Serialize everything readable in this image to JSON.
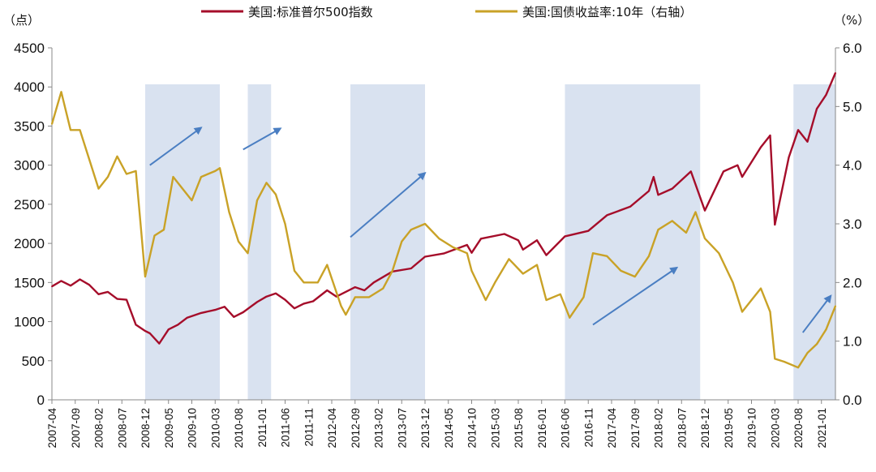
{
  "chart_data": {
    "type": "line",
    "title": "",
    "xlabel": "",
    "x_start": "2007-04",
    "x_end": "2021-04",
    "x_tick_labels": [
      "2007-04",
      "2007-09",
      "2008-02",
      "2008-07",
      "2008-12",
      "2009-05",
      "2009-10",
      "2010-03",
      "2010-08",
      "2011-01",
      "2011-06",
      "2011-11",
      "2012-04",
      "2012-09",
      "2013-02",
      "2013-07",
      "2013-12",
      "2014-05",
      "2014-10",
      "2015-03",
      "2015-08",
      "2016-01",
      "2016-06",
      "2016-11",
      "2017-04",
      "2017-09",
      "2018-02",
      "2018-07",
      "2018-12",
      "2019-05",
      "2019-10",
      "2020-03",
      "2020-08",
      "2021-01"
    ],
    "left_axis": {
      "unit": "（点）",
      "ylim": [
        0,
        4500
      ],
      "ticks": [
        "0",
        "500",
        "1000",
        "1500",
        "2000",
        "2500",
        "3000",
        "3500",
        "4000",
        "4500"
      ]
    },
    "right_axis": {
      "unit": "（%）",
      "ylim": [
        0,
        6
      ],
      "ticks": [
        "0.0",
        "1.0",
        "2.0",
        "3.0",
        "4.0",
        "5.0",
        "6.0"
      ]
    },
    "series": [
      {
        "name": "美国:标准普尔500指数",
        "axis": "left",
        "color": "#a50d2a",
        "points": [
          [
            "2007-04",
            1450
          ],
          [
            "2007-06",
            1520
          ],
          [
            "2007-08",
            1460
          ],
          [
            "2007-10",
            1540
          ],
          [
            "2007-12",
            1470
          ],
          [
            "2008-02",
            1350
          ],
          [
            "2008-04",
            1380
          ],
          [
            "2008-06",
            1290
          ],
          [
            "2008-08",
            1280
          ],
          [
            "2008-10",
            960
          ],
          [
            "2008-12",
            880
          ],
          [
            "2009-01",
            850
          ],
          [
            "2009-03",
            720
          ],
          [
            "2009-05",
            900
          ],
          [
            "2009-07",
            960
          ],
          [
            "2009-09",
            1050
          ],
          [
            "2009-12",
            1110
          ],
          [
            "2010-03",
            1150
          ],
          [
            "2010-05",
            1190
          ],
          [
            "2010-07",
            1060
          ],
          [
            "2010-09",
            1120
          ],
          [
            "2010-12",
            1250
          ],
          [
            "2011-02",
            1320
          ],
          [
            "2011-04",
            1360
          ],
          [
            "2011-06",
            1280
          ],
          [
            "2011-08",
            1170
          ],
          [
            "2011-10",
            1230
          ],
          [
            "2011-12",
            1260
          ],
          [
            "2012-03",
            1400
          ],
          [
            "2012-05",
            1320
          ],
          [
            "2012-09",
            1440
          ],
          [
            "2012-11",
            1400
          ],
          [
            "2013-01",
            1500
          ],
          [
            "2013-05",
            1640
          ],
          [
            "2013-09",
            1680
          ],
          [
            "2013-12",
            1830
          ],
          [
            "2014-04",
            1870
          ],
          [
            "2014-09",
            1980
          ],
          [
            "2014-10",
            1880
          ],
          [
            "2014-12",
            2060
          ],
          [
            "2015-05",
            2120
          ],
          [
            "2015-08",
            2040
          ],
          [
            "2015-09",
            1920
          ],
          [
            "2015-12",
            2040
          ],
          [
            "2016-02",
            1850
          ],
          [
            "2016-06",
            2090
          ],
          [
            "2016-11",
            2160
          ],
          [
            "2017-03",
            2360
          ],
          [
            "2017-08",
            2470
          ],
          [
            "2017-12",
            2670
          ],
          [
            "2018-01",
            2850
          ],
          [
            "2018-02",
            2620
          ],
          [
            "2018-05",
            2700
          ],
          [
            "2018-09",
            2920
          ],
          [
            "2018-12",
            2420
          ],
          [
            "2019-04",
            2920
          ],
          [
            "2019-07",
            3000
          ],
          [
            "2019-08",
            2850
          ],
          [
            "2019-12",
            3230
          ],
          [
            "2020-02",
            3380
          ],
          [
            "2020-03",
            2240
          ],
          [
            "2020-06",
            3100
          ],
          [
            "2020-08",
            3450
          ],
          [
            "2020-10",
            3300
          ],
          [
            "2020-12",
            3720
          ],
          [
            "2021-02",
            3900
          ],
          [
            "2021-04",
            4180
          ]
        ]
      },
      {
        "name": "美国:国债收益率:10年（右轴）",
        "axis": "right",
        "color": "#c9a227",
        "points": [
          [
            "2007-04",
            4.7
          ],
          [
            "2007-06",
            5.25
          ],
          [
            "2007-08",
            4.6
          ],
          [
            "2007-10",
            4.6
          ],
          [
            "2007-12",
            4.1
          ],
          [
            "2008-02",
            3.6
          ],
          [
            "2008-04",
            3.8
          ],
          [
            "2008-06",
            4.15
          ],
          [
            "2008-08",
            3.85
          ],
          [
            "2008-10",
            3.9
          ],
          [
            "2008-11",
            3.0
          ],
          [
            "2008-12",
            2.1
          ],
          [
            "2009-02",
            2.8
          ],
          [
            "2009-04",
            2.9
          ],
          [
            "2009-06",
            3.8
          ],
          [
            "2009-08",
            3.6
          ],
          [
            "2009-10",
            3.4
          ],
          [
            "2009-12",
            3.8
          ],
          [
            "2010-03",
            3.9
          ],
          [
            "2010-04",
            3.95
          ],
          [
            "2010-06",
            3.2
          ],
          [
            "2010-08",
            2.7
          ],
          [
            "2010-10",
            2.5
          ],
          [
            "2010-12",
            3.4
          ],
          [
            "2011-02",
            3.7
          ],
          [
            "2011-04",
            3.5
          ],
          [
            "2011-06",
            3.0
          ],
          [
            "2011-08",
            2.2
          ],
          [
            "2011-10",
            2.0
          ],
          [
            "2012-01",
            2.0
          ],
          [
            "2012-03",
            2.3
          ],
          [
            "2012-06",
            1.6
          ],
          [
            "2012-07",
            1.45
          ],
          [
            "2012-09",
            1.75
          ],
          [
            "2012-12",
            1.75
          ],
          [
            "2013-03",
            1.9
          ],
          [
            "2013-05",
            2.2
          ],
          [
            "2013-07",
            2.7
          ],
          [
            "2013-09",
            2.9
          ],
          [
            "2013-12",
            3.0
          ],
          [
            "2014-03",
            2.75
          ],
          [
            "2014-06",
            2.6
          ],
          [
            "2014-09",
            2.5
          ],
          [
            "2014-10",
            2.2
          ],
          [
            "2015-01",
            1.7
          ],
          [
            "2015-03",
            2.0
          ],
          [
            "2015-06",
            2.4
          ],
          [
            "2015-09",
            2.15
          ],
          [
            "2015-12",
            2.3
          ],
          [
            "2016-02",
            1.7
          ],
          [
            "2016-05",
            1.8
          ],
          [
            "2016-07",
            1.4
          ],
          [
            "2016-10",
            1.75
          ],
          [
            "2016-12",
            2.5
          ],
          [
            "2017-03",
            2.45
          ],
          [
            "2017-06",
            2.2
          ],
          [
            "2017-09",
            2.1
          ],
          [
            "2017-12",
            2.45
          ],
          [
            "2018-02",
            2.9
          ],
          [
            "2018-05",
            3.05
          ],
          [
            "2018-08",
            2.85
          ],
          [
            "2018-10",
            3.2
          ],
          [
            "2018-12",
            2.75
          ],
          [
            "2019-03",
            2.5
          ],
          [
            "2019-06",
            2.0
          ],
          [
            "2019-08",
            1.5
          ],
          [
            "2019-10",
            1.7
          ],
          [
            "2019-12",
            1.9
          ],
          [
            "2020-02",
            1.5
          ],
          [
            "2020-03",
            0.7
          ],
          [
            "2020-05",
            0.65
          ],
          [
            "2020-08",
            0.55
          ],
          [
            "2020-10",
            0.8
          ],
          [
            "2020-12",
            0.95
          ],
          [
            "2021-02",
            1.2
          ],
          [
            "2021-04",
            1.6
          ]
        ]
      }
    ],
    "shaded_periods": [
      [
        "2008-12",
        "2010-04"
      ],
      [
        "2010-10",
        "2011-03"
      ],
      [
        "2012-08",
        "2013-12"
      ],
      [
        "2016-06",
        "2018-11"
      ],
      [
        "2020-07",
        "2021-04"
      ]
    ],
    "trend_arrows": [
      {
        "from": [
          "2009-01",
          3000
        ],
        "to": [
          "2009-12",
          3480
        ]
      },
      {
        "from": [
          "2010-09",
          3200
        ],
        "to": [
          "2011-05",
          3470
        ]
      },
      {
        "from": [
          "2012-08",
          2080
        ],
        "to": [
          "2013-12",
          2900
        ]
      },
      {
        "from": [
          "2016-12",
          960
        ],
        "to": [
          "2018-06",
          1690
        ]
      },
      {
        "from": [
          "2020-09",
          860
        ],
        "to": [
          "2021-03",
          1330
        ]
      }
    ],
    "shade_color": "#d9e2f0",
    "arrow_color": "#4a7ec2",
    "grid": false,
    "legend_position": "top"
  }
}
